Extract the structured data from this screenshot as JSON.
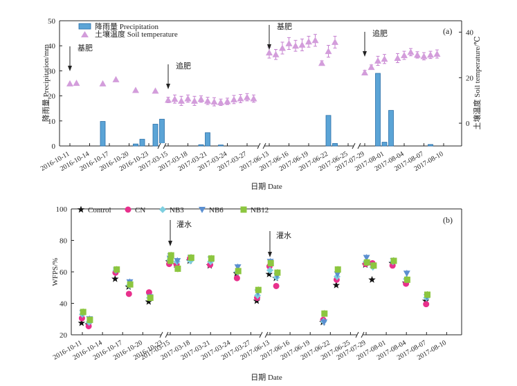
{
  "chart_data": [
    {
      "panel": "(a)",
      "type": "bar+scatter",
      "xlabel": "日期 Date",
      "ylabel": "降雨量 Precipitation/mm",
      "y2label": "土壤温度 Soil temperature/℃",
      "ylim": [
        0,
        50
      ],
      "y2lim": [
        -10,
        45
      ],
      "yticks": [
        0,
        10,
        20,
        30,
        40,
        50
      ],
      "y2ticks": [
        0,
        20,
        40
      ],
      "xticks": [
        "2016-10-11",
        "2016-10-14",
        "2016-10-17",
        "2016-10-20",
        "2016-10-23",
        "2017-03-15",
        "2017-03-18",
        "2017-03-21",
        "2017-03-24",
        "2017-03-27",
        "2017-06-13",
        "2017-06-16",
        "2017-06-19",
        "2017-06-22",
        "2017-06-25",
        "2017-07-29",
        "2017-08-01",
        "2017-08-04",
        "2017-08-07",
        "2017-08-10"
      ],
      "legend": [
        "降雨量 Precipitation",
        "土壤温度 Soil temperature"
      ],
      "legend_position": "top-left",
      "annotations": [
        {
          "text": "基肥",
          "x": "2016-10-11"
        },
        {
          "text": "追肥",
          "x": "2017-03-15"
        },
        {
          "text": "基肥",
          "x": "2017-06-13"
        },
        {
          "text": "追肥",
          "x": "2017-07-29"
        }
      ],
      "precipitation": [
        {
          "x": "2016-10-16",
          "value": 9.8
        },
        {
          "x": "2016-10-21",
          "value": 0.8
        },
        {
          "x": "2016-10-22",
          "value": 2.7
        },
        {
          "x": "2016-10-24",
          "value": 8.7
        },
        {
          "x": "2016-10-25",
          "value": 10.7
        },
        {
          "x": "2017-03-20",
          "value": 0.5
        },
        {
          "x": "2017-03-21",
          "value": 5.3
        },
        {
          "x": "2017-03-23",
          "value": 0.4
        },
        {
          "x": "2017-06-22",
          "value": 12.2
        },
        {
          "x": "2017-06-23",
          "value": 1.0
        },
        {
          "x": "2017-07-31",
          "value": 29.0
        },
        {
          "x": "2017-08-01",
          "value": 1.5
        },
        {
          "x": "2017-08-02",
          "value": 14.2
        },
        {
          "x": "2017-08-08",
          "value": 0.6
        }
      ],
      "soil_temperature": [
        {
          "x": "2016-10-11",
          "value": 17.4,
          "err": 0
        },
        {
          "x": "2016-10-12",
          "value": 17.6,
          "err": 0
        },
        {
          "x": "2016-10-16",
          "value": 17.4,
          "err": 0
        },
        {
          "x": "2016-10-18",
          "value": 19.2,
          "err": 0
        },
        {
          "x": "2016-10-21",
          "value": 14.5,
          "err": 0
        },
        {
          "x": "2016-10-24",
          "value": 14.2,
          "err": 0
        },
        {
          "x": "2017-03-15",
          "value": 10.2,
          "err": 1.2
        },
        {
          "x": "2017-03-16",
          "value": 10.6,
          "err": 1.8
        },
        {
          "x": "2017-03-17",
          "value": 9.8,
          "err": 2.0
        },
        {
          "x": "2017-03-18",
          "value": 10.8,
          "err": 1.6
        },
        {
          "x": "2017-03-19",
          "value": 9.8,
          "err": 2.0
        },
        {
          "x": "2017-03-20",
          "value": 10.6,
          "err": 1.4
        },
        {
          "x": "2017-03-21",
          "value": 9.8,
          "err": 1.6
        },
        {
          "x": "2017-03-22",
          "value": 9.4,
          "err": 1.8
        },
        {
          "x": "2017-03-23",
          "value": 9.2,
          "err": 1.4
        },
        {
          "x": "2017-03-24",
          "value": 9.6,
          "err": 1.4
        },
        {
          "x": "2017-03-25",
          "value": 10.4,
          "err": 1.8
        },
        {
          "x": "2017-03-26",
          "value": 10.8,
          "err": 1.8
        },
        {
          "x": "2017-03-27",
          "value": 11.4,
          "err": 1.6
        },
        {
          "x": "2017-03-28",
          "value": 10.8,
          "err": 1.6
        },
        {
          "x": "2017-06-13",
          "value": 31.0,
          "err": 2.4
        },
        {
          "x": "2017-06-14",
          "value": 30.2,
          "err": 2.2
        },
        {
          "x": "2017-06-15",
          "value": 33.0,
          "err": 2.6
        },
        {
          "x": "2017-06-16",
          "value": 35.0,
          "err": 2.6
        },
        {
          "x": "2017-06-17",
          "value": 34.0,
          "err": 2.4
        },
        {
          "x": "2017-06-18",
          "value": 34.4,
          "err": 2.6
        },
        {
          "x": "2017-06-19",
          "value": 35.8,
          "err": 2.4
        },
        {
          "x": "2017-06-20",
          "value": 36.4,
          "err": 2.6
        },
        {
          "x": "2017-06-21",
          "value": 26.4,
          "err": 1.0
        },
        {
          "x": "2017-06-22",
          "value": 31.6,
          "err": 2.6
        },
        {
          "x": "2017-06-23",
          "value": 35.6,
          "err": 2.6
        },
        {
          "x": "2017-07-29",
          "value": 22.2,
          "err": 1.0
        },
        {
          "x": "2017-07-30",
          "value": 24.6,
          "err": 1.0
        },
        {
          "x": "2017-07-31",
          "value": 27.4,
          "err": 2.0
        },
        {
          "x": "2017-08-01",
          "value": 28.2,
          "err": 2.0
        },
        {
          "x": "2017-08-03",
          "value": 28.6,
          "err": 2.0
        },
        {
          "x": "2017-08-04",
          "value": 29.8,
          "err": 1.8
        },
        {
          "x": "2017-08-05",
          "value": 31.2,
          "err": 1.6
        },
        {
          "x": "2017-08-06",
          "value": 30.0,
          "err": 1.4
        },
        {
          "x": "2017-08-07",
          "value": 29.4,
          "err": 1.6
        },
        {
          "x": "2017-08-08",
          "value": 30.0,
          "err": 1.6
        },
        {
          "x": "2017-08-09",
          "value": 30.4,
          "err": 1.8
        }
      ]
    },
    {
      "panel": "(b)",
      "type": "scatter",
      "xlabel": "日期 Date",
      "ylabel": "WFPS/%",
      "ylim": [
        20,
        100
      ],
      "yticks": [
        20,
        40,
        60,
        80,
        100
      ],
      "xticks": [
        "2016-10-11",
        "2016-10-14",
        "2016-10-17",
        "2016-10-20",
        "2016-10-23",
        "2017-03-15",
        "2017-03-18",
        "2017-03-21",
        "2017-03-24",
        "2017-03-27",
        "2017-06-13",
        "2017-06-16",
        "2017-06-19",
        "2017-06-22",
        "2017-06-25",
        "2017-07-29",
        "2017-08-01",
        "2017-08-04",
        "2017-08-07",
        "2017-08-10"
      ],
      "legend_position": "top",
      "annotations": [
        {
          "text": "灌水",
          "x": "2017-03-15"
        },
        {
          "text": "灌水",
          "x": "2017-06-13"
        }
      ],
      "dates": [
        "2016-10-11",
        "2016-10-12",
        "2016-10-16",
        "2016-10-18",
        "2016-10-21",
        "2016-10-24",
        "2017-03-15",
        "2017-03-16",
        "2017-03-18",
        "2017-03-21",
        "2017-03-25",
        "2017-03-28",
        "2017-06-13",
        "2017-06-14",
        "2017-06-21",
        "2017-06-23",
        "2017-07-29",
        "2017-07-30",
        "2017-08-02",
        "2017-08-04",
        "2017-08-07"
      ],
      "series": [
        {
          "name": "Control",
          "color": "#111111",
          "values": [
            27.5,
            26.5,
            55.5,
            50.5,
            41.0,
            66.5,
            66.5,
            64.5,
            67.0,
            64.0,
            59.0,
            41.5,
            58.5,
            56.0,
            28.0,
            51.5,
            64.5,
            55.0,
            65.5,
            53.0,
            41.5
          ]
        },
        {
          "name": "CN",
          "color": "#e8308c",
          "values": [
            30.5,
            25.5,
            59.5,
            46.0,
            47.0,
            65.0,
            67.0,
            64.5,
            68.5,
            64.5,
            56.0,
            43.5,
            63.5,
            51.0,
            29.5,
            55.0,
            65.0,
            65.5,
            64.0,
            52.5,
            39.5
          ]
        },
        {
          "name": "NB3",
          "color": "#7ecfe0",
          "values": [
            33.0,
            28.0,
            61.0,
            51.5,
            43.5,
            67.5,
            69.0,
            66.5,
            67.0,
            66.5,
            60.0,
            45.0,
            61.0,
            56.5,
            28.5,
            57.0,
            66.5,
            63.0,
            66.5,
            55.5,
            43.5
          ]
        },
        {
          "name": "NB6",
          "color": "#5b8fd0",
          "values": [
            34.0,
            30.0,
            61.0,
            53.5,
            44.0,
            68.5,
            70.0,
            67.0,
            69.0,
            68.0,
            63.0,
            47.0,
            66.5,
            57.5,
            28.0,
            58.5,
            69.0,
            64.0,
            67.0,
            59.0,
            44.0
          ]
        },
        {
          "name": "NB12",
          "color": "#8cc63f",
          "values": [
            34.5,
            29.5,
            61.5,
            52.0,
            43.5,
            67.0,
            70.5,
            62.0,
            69.0,
            68.5,
            60.5,
            48.5,
            65.5,
            59.5,
            33.5,
            61.5,
            66.0,
            64.0,
            67.0,
            55.0,
            45.5
          ]
        }
      ]
    }
  ]
}
